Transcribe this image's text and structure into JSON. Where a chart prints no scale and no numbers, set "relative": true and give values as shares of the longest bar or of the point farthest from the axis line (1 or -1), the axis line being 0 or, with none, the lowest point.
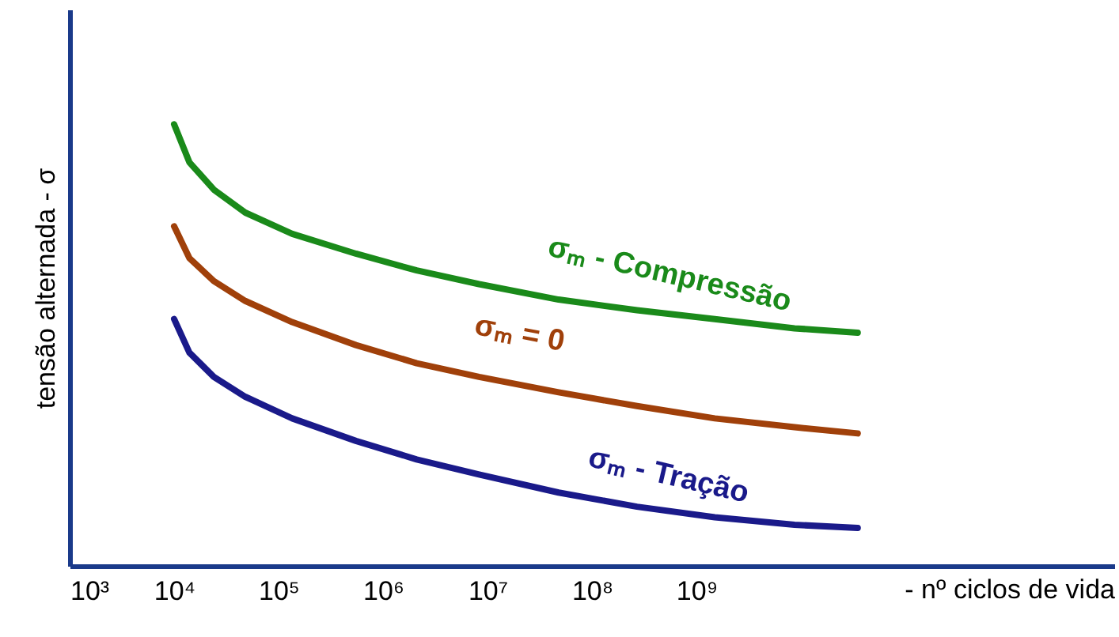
{
  "chart_data": {
    "type": "line",
    "relative": true,
    "log": "x",
    "xlabel": "- nº ciclos de vida",
    "ylabel": "tensão alternada - σ",
    "x": [
      10000,
      14000,
      24000,
      48000,
      135000,
      550000,
      2100000,
      8300000,
      48000000,
      270000000,
      1500000000,
      8700000000,
      35000000000
    ],
    "xlim": [
      1000,
      10000000000000
    ],
    "xticks": [
      {
        "value": 1000,
        "label": "10³"
      },
      {
        "value": 10000,
        "label": "10⁴"
      },
      {
        "value": 100000,
        "label": "10⁵"
      },
      {
        "value": 1000000,
        "label": "10⁶"
      },
      {
        "value": 10000000,
        "label": "10⁷"
      },
      {
        "value": 100000000,
        "label": "10⁸"
      },
      {
        "value": 1000000000,
        "label": "10⁹"
      }
    ],
    "tick_labels": "x",
    "grid": false,
    "marker": "none",
    "line_style": "solid",
    "series": [
      {
        "name": "σₘ - Compressão",
        "color": "#1a8a1a",
        "values": [
          1,
          0.914,
          0.852,
          0.8,
          0.752,
          0.707,
          0.669,
          0.638,
          0.603,
          0.579,
          0.559,
          0.538,
          0.528
        ]
      },
      {
        "name": "σₘ = 0",
        "color": "#a0400a",
        "values": [
          0.769,
          0.697,
          0.645,
          0.6,
          0.552,
          0.5,
          0.459,
          0.428,
          0.393,
          0.362,
          0.334,
          0.314,
          0.3
        ]
      },
      {
        "name": "σₘ - Tração",
        "color": "#1a1a8a",
        "values": [
          0.559,
          0.483,
          0.428,
          0.383,
          0.334,
          0.283,
          0.241,
          0.207,
          0.166,
          0.134,
          0.11,
          0.093,
          0.086
        ]
      }
    ]
  }
}
